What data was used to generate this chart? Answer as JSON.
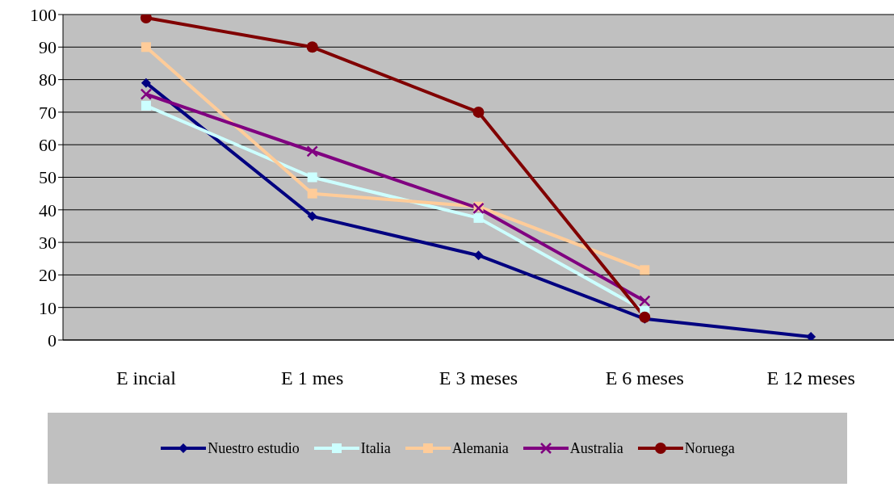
{
  "chart_data": {
    "type": "line",
    "categories": [
      "E incial",
      "E 1 mes",
      "E 3 meses",
      "E 6 meses",
      "E 12 meses"
    ],
    "series": [
      {
        "name": "Nuestro estudio",
        "color": "#000080",
        "marker": "diamond",
        "values": [
          79,
          38,
          26,
          6.5,
          1
        ]
      },
      {
        "name": "Italia",
        "color": "#ccffff",
        "marker": "square",
        "values": [
          72,
          50,
          37.5,
          9,
          null
        ]
      },
      {
        "name": "Alemania",
        "color": "#ffcc99",
        "marker": "square",
        "values": [
          90,
          45,
          41,
          21.5,
          null
        ]
      },
      {
        "name": "Australia",
        "color": "#800080",
        "marker": "cross",
        "values": [
          75.5,
          58,
          40.5,
          12,
          null
        ]
      },
      {
        "name": "Noruega",
        "color": "#800000",
        "marker": "circle",
        "values": [
          99,
          90,
          70,
          7,
          null
        ]
      }
    ],
    "ylim": [
      0,
      100
    ],
    "yticks": [
      0,
      10,
      20,
      30,
      40,
      50,
      60,
      70,
      80,
      90,
      100
    ],
    "grid": "y",
    "legend": "bottom"
  }
}
